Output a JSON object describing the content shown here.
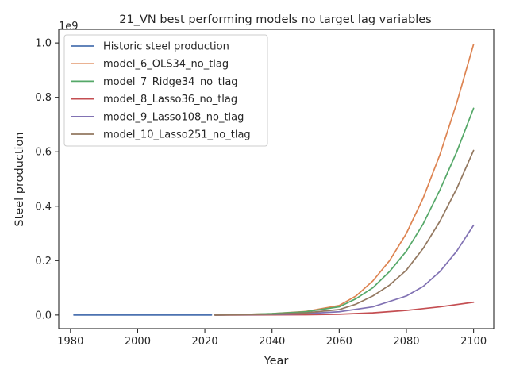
{
  "chart_data": {
    "type": "line",
    "title": "21_VN best performing models no target lag variables",
    "xlabel": "Year",
    "ylabel": "Steel production",
    "y_scale_label": "1e9",
    "xlim": [
      1976.5,
      2106
    ],
    "ylim": [
      -0.05,
      1.05
    ],
    "y_unit_multiplier": 1000000000,
    "xticks": [
      1980,
      2000,
      2020,
      2040,
      2060,
      2080,
      2100
    ],
    "yticks": [
      0.0,
      0.2,
      0.4,
      0.6,
      0.8,
      1.0
    ],
    "ytick_labels": [
      "0.0",
      "0.2",
      "0.4",
      "0.6",
      "0.8",
      "1.0"
    ],
    "legend_position": "top-left",
    "series": [
      {
        "name": "Historic steel production",
        "color": "#4c72b0",
        "x": [
          1981,
          1990,
          2000,
          2010,
          2020,
          2022
        ],
        "y": [
          0.0,
          0.0,
          0.0,
          0.0,
          0.0,
          0.0
        ]
      },
      {
        "name": "model_6_OLS34_no_tlag",
        "color": "#dd8452",
        "x": [
          2023,
          2030,
          2040,
          2050,
          2060,
          2065,
          2070,
          2075,
          2080,
          2085,
          2090,
          2095,
          2100
        ],
        "y": [
          0.0,
          0.0015,
          0.005,
          0.013,
          0.035,
          0.07,
          0.125,
          0.2,
          0.3,
          0.43,
          0.59,
          0.78,
          0.995
        ]
      },
      {
        "name": "model_7_Ridge34_no_tlag",
        "color": "#55a868",
        "x": [
          2023,
          2030,
          2040,
          2050,
          2060,
          2065,
          2070,
          2075,
          2080,
          2085,
          2090,
          2095,
          2100
        ],
        "y": [
          0.0,
          0.0015,
          0.005,
          0.012,
          0.03,
          0.06,
          0.1,
          0.16,
          0.235,
          0.335,
          0.46,
          0.6,
          0.76
        ]
      },
      {
        "name": "model_8_Lasso36_no_tlag",
        "color": "#c44e52",
        "x": [
          2023,
          2030,
          2040,
          2050,
          2060,
          2070,
          2080,
          2090,
          2100
        ],
        "y": [
          0.0,
          0.0,
          0.0005,
          0.001,
          0.003,
          0.008,
          0.017,
          0.03,
          0.047
        ]
      },
      {
        "name": "model_9_Lasso108_no_tlag",
        "color": "#8172b3",
        "x": [
          2023,
          2030,
          2040,
          2050,
          2060,
          2070,
          2080,
          2085,
          2090,
          2095,
          2100
        ],
        "y": [
          0.0,
          0.0005,
          0.002,
          0.005,
          0.012,
          0.03,
          0.07,
          0.105,
          0.16,
          0.235,
          0.33
        ]
      },
      {
        "name": "model_10_Lasso251_no_tlag",
        "color": "#937860",
        "x": [
          2023,
          2030,
          2040,
          2050,
          2060,
          2065,
          2070,
          2075,
          2080,
          2085,
          2090,
          2095,
          2100
        ],
        "y": [
          0.0,
          0.001,
          0.003,
          0.008,
          0.02,
          0.04,
          0.07,
          0.11,
          0.165,
          0.245,
          0.345,
          0.465,
          0.605
        ]
      }
    ]
  }
}
